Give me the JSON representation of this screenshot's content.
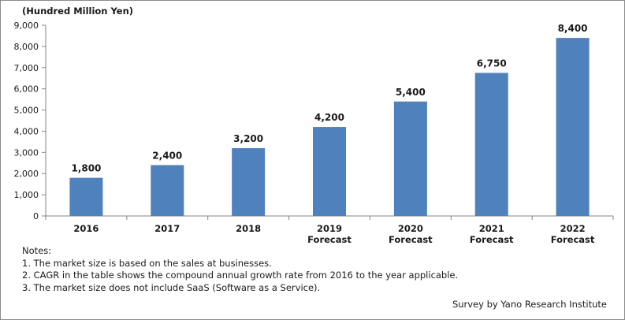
{
  "chart_data": {
    "type": "bar",
    "unit_label": "(Hundred Million Yen)",
    "categories": [
      [
        "2016"
      ],
      [
        "2017"
      ],
      [
        "2018"
      ],
      [
        "2019",
        "Forecast"
      ],
      [
        "2020",
        "Forecast"
      ],
      [
        "2021",
        "Forecast"
      ],
      [
        "2022",
        "Forecast"
      ]
    ],
    "values": [
      1800,
      2400,
      3200,
      4200,
      5400,
      6750,
      8400
    ],
    "value_labels": [
      "1,800",
      "2,400",
      "3,200",
      "4,200",
      "5,400",
      "6,750",
      "8,400"
    ],
    "ylim": [
      0,
      9000
    ],
    "yticks": [
      0,
      1000,
      2000,
      3000,
      4000,
      5000,
      6000,
      7000,
      8000,
      9000
    ],
    "ytick_labels": [
      "0",
      "1,000",
      "2,000",
      "3,000",
      "4,000",
      "5,000",
      "6,000",
      "7,000",
      "8,000",
      "9,000"
    ],
    "grid": false,
    "legend": "none",
    "bar_color": "#4f81bd",
    "title": "",
    "xlabel": "",
    "ylabel": ""
  },
  "notes": {
    "heading": "Notes:",
    "items": [
      "1. The market size is based on the sales at businesses.",
      "2. CAGR in the table shows the compound annual growth rate from 2016 to the year applicable.",
      "3.  The market size does not include SaaS (Software as a Service)."
    ]
  },
  "source": "Survey by Yano Research Institute",
  "colors": {
    "bar": "#4f81bd",
    "axis": "#868686",
    "text": "#1a1a1a",
    "frame": "#8c8c8c"
  }
}
